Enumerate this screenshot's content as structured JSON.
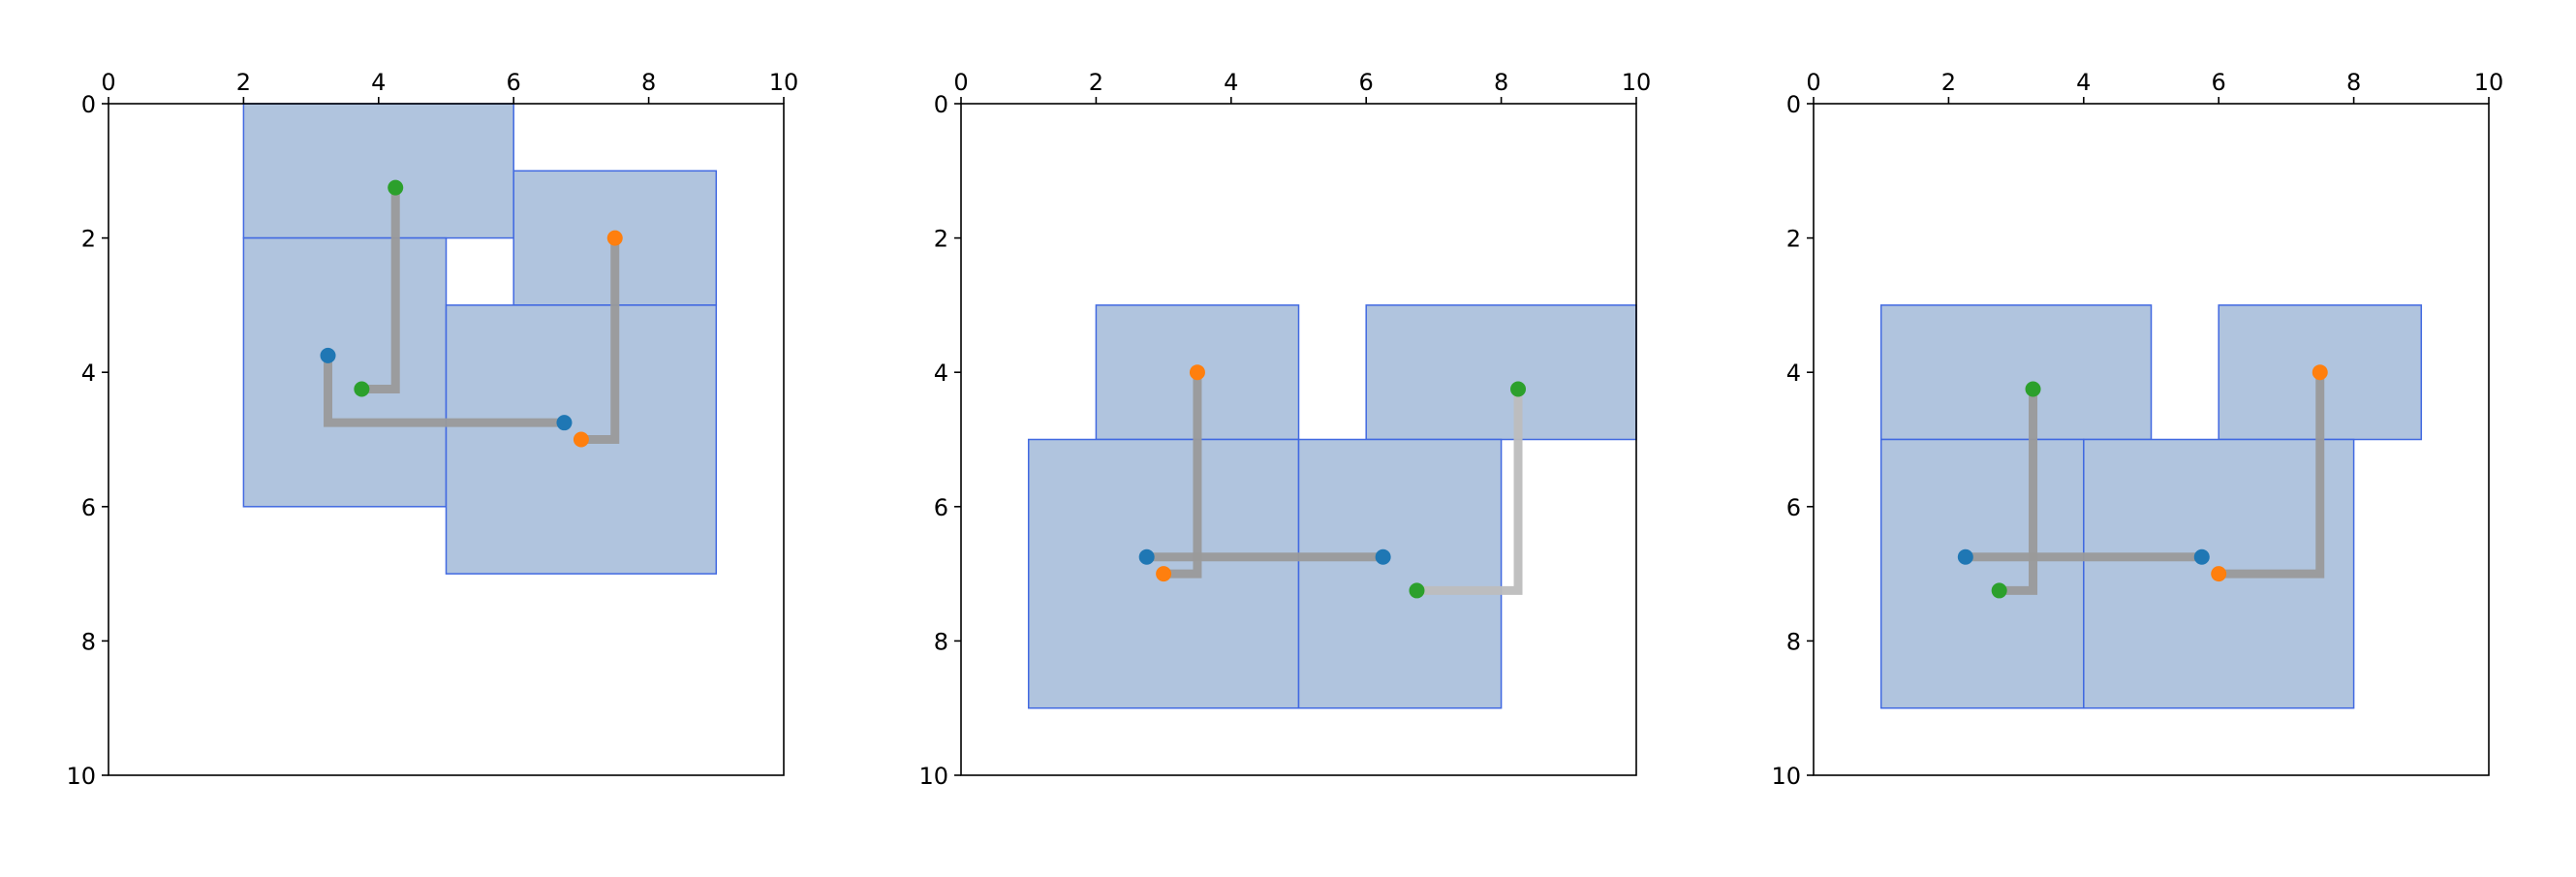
{
  "chart_data": [
    {
      "type": "routing",
      "xlim": [
        0,
        10
      ],
      "ylim": [
        10,
        0
      ],
      "xticks": [
        0,
        2,
        4,
        6,
        8,
        10
      ],
      "yticks": [
        0,
        2,
        4,
        6,
        8,
        10
      ],
      "rect_fill": "#b0c4de",
      "rect_edge": "#4169e1",
      "rects": [
        {
          "x": 2,
          "y": 0,
          "width": 4,
          "height": 2
        },
        {
          "x": 6,
          "y": 1,
          "width": 3,
          "height": 2
        },
        {
          "x": 2,
          "y": 2,
          "width": 3,
          "height": 4
        },
        {
          "x": 5,
          "y": 3,
          "width": 4,
          "height": 4
        }
      ],
      "paths": [
        {
          "color": "#1f77b4",
          "line_color": "#9a9a9a",
          "x": [
            3.25,
            3.25,
            6.75
          ],
          "y": [
            3.75,
            4.75,
            4.75
          ]
        },
        {
          "color": "#2ca02c",
          "line_color": "#9a9a9a",
          "x": [
            4.25,
            4.25,
            3.75
          ],
          "y": [
            1.25,
            4.25,
            4.25
          ]
        },
        {
          "color": "#ff7f0e",
          "line_color": "#9a9a9a",
          "x": [
            7.5,
            7.5,
            7
          ],
          "y": [
            2,
            5,
            5
          ]
        }
      ]
    },
    {
      "type": "routing",
      "xlim": [
        0,
        10
      ],
      "ylim": [
        10,
        0
      ],
      "xticks": [
        0,
        2,
        4,
        6,
        8,
        10
      ],
      "yticks": [
        0,
        2,
        4,
        6,
        8,
        10
      ],
      "rect_fill": "#b0c4de",
      "rect_edge": "#4169e1",
      "rects": [
        {
          "x": 2,
          "y": 3,
          "width": 3,
          "height": 2
        },
        {
          "x": 6,
          "y": 3,
          "width": 4,
          "height": 2
        },
        {
          "x": 1,
          "y": 5,
          "width": 4,
          "height": 4
        },
        {
          "x": 5,
          "y": 5,
          "width": 3,
          "height": 4
        }
      ],
      "paths": [
        {
          "color": "#1f77b4",
          "line_color": "#9a9a9a",
          "x": [
            2.75,
            6.25
          ],
          "y": [
            6.75,
            6.75
          ]
        },
        {
          "color": "#ff7f0e",
          "line_color": "#9a9a9a",
          "x": [
            3.5,
            3.5,
            3
          ],
          "y": [
            4,
            7,
            7
          ]
        },
        {
          "color": "#2ca02c",
          "line_color": "#bdbdbd",
          "x": [
            8.25,
            8.25,
            6.75
          ],
          "y": [
            4.25,
            7.25,
            7.25
          ]
        }
      ]
    },
    {
      "type": "routing",
      "xlim": [
        0,
        10
      ],
      "ylim": [
        10,
        0
      ],
      "xticks": [
        0,
        2,
        4,
        6,
        8,
        10
      ],
      "yticks": [
        0,
        2,
        4,
        6,
        8,
        10
      ],
      "rect_fill": "#b0c4de",
      "rect_edge": "#4169e1",
      "rects": [
        {
          "x": 1,
          "y": 3,
          "width": 4,
          "height": 2
        },
        {
          "x": 6,
          "y": 3,
          "width": 3,
          "height": 2
        },
        {
          "x": 1,
          "y": 5,
          "width": 3,
          "height": 4
        },
        {
          "x": 4,
          "y": 5,
          "width": 4,
          "height": 4
        }
      ],
      "paths": [
        {
          "color": "#1f77b4",
          "line_color": "#9a9a9a",
          "x": [
            2.25,
            5.75
          ],
          "y": [
            6.75,
            6.75
          ]
        },
        {
          "color": "#2ca02c",
          "line_color": "#9a9a9a",
          "x": [
            3.25,
            3.25,
            2.75
          ],
          "y": [
            4.25,
            7.25,
            7.25
          ]
        },
        {
          "color": "#ff7f0e",
          "line_color": "#9a9a9a",
          "x": [
            7.5,
            7.5,
            6
          ],
          "y": [
            4,
            7,
            7
          ]
        }
      ]
    }
  ]
}
